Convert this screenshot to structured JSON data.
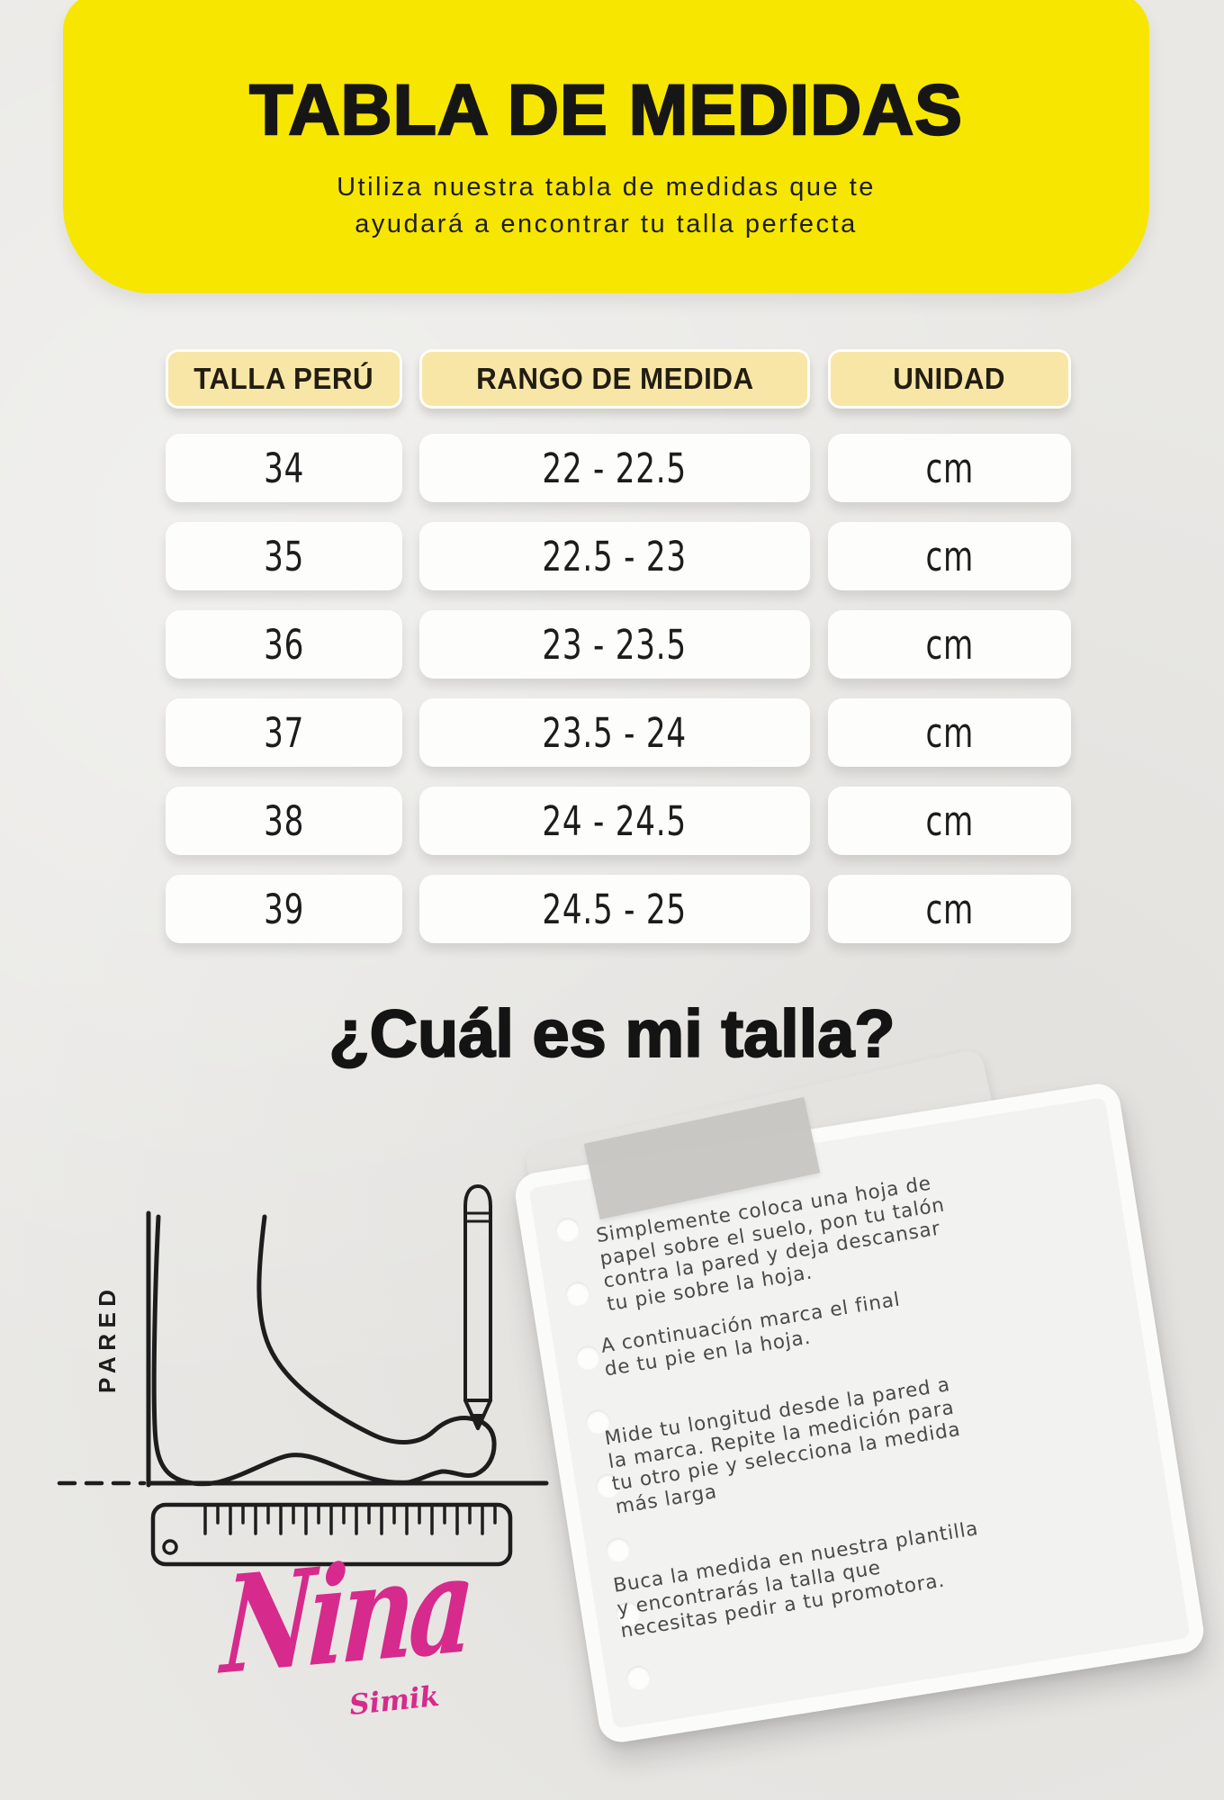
{
  "banner": {
    "title": "TABLA DE MEDIDAS",
    "subtitle": "Utiliza nuestra tabla de medidas que te\nayudará a encontrar tu talla perfecta"
  },
  "size_table": {
    "columns": [
      "TALLA PERÚ",
      "RANGO DE MEDIDA",
      "UNIDAD"
    ],
    "rows": [
      [
        "34",
        "22 - 22.5",
        "cm"
      ],
      [
        "35",
        "22.5 - 23",
        "cm"
      ],
      [
        "36",
        "23 - 23.5",
        "cm"
      ],
      [
        "37",
        "23.5 - 24",
        "cm"
      ],
      [
        "38",
        "24 - 24.5",
        "cm"
      ],
      [
        "39",
        "24.5 - 25",
        "cm"
      ]
    ]
  },
  "guide": {
    "heading": "¿Cuál es mi talla?",
    "wall_label": "PARED",
    "steps": [
      "Simplemente coloca una hoja de\npapel sobre el suelo, pon tu talón\ncontra la pared y deja descansar\ntu pie sobre la hoja.",
      "A continuación marca el final\nde tu pie en la hoja.",
      "Mide tu longitud desde la pared a\nla marca. Repite la medición para\ntu otro pie y selecciona la medida\nmás larga",
      "Buca la medida en nuestra plantilla\ny encontrarás la talla que\nnecesitas pedir a tu promotora."
    ]
  },
  "brand": {
    "name": "Nina",
    "subname": "Simik"
  },
  "colors": {
    "banner_yellow": "#f7e600",
    "header_pill_yellow": "#f8e6a7",
    "brand_pink": "#d62a8c",
    "ink": "#1b1b1b"
  }
}
